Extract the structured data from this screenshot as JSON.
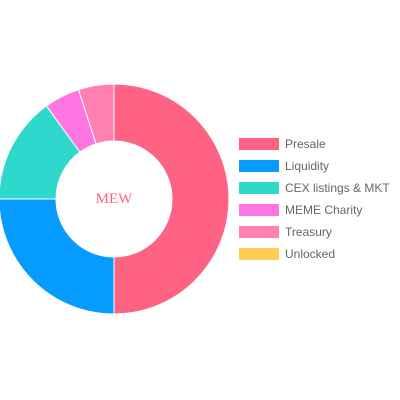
{
  "chart_data": {
    "type": "pie",
    "hole": true,
    "center_text": "MEW",
    "center_text_color": "#ff6384",
    "categories": [
      "Presale",
      "Liquidity",
      "CEX listings & MKT",
      "MEME Charity",
      "Treasury",
      "Unlocked"
    ],
    "values": [
      50,
      25,
      15,
      5,
      5,
      0
    ],
    "colors": [
      "#ff6384",
      "#059bff",
      "#2ed8cd",
      "#ff76e3",
      "#ff80b1",
      "#ffcd56"
    ],
    "legend_position": "right",
    "slice_border_color": "#ffffff"
  }
}
